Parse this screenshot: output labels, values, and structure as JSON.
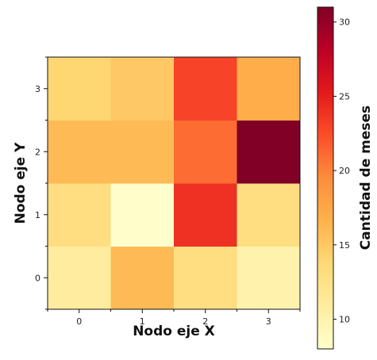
{
  "chart_data": {
    "type": "heatmap",
    "xlabel": "Nodo eje X",
    "ylabel": "Nodo eje Y",
    "x_categories": [
      "0",
      "1",
      "2",
      "3"
    ],
    "y_categories": [
      "0",
      "1",
      "2",
      "3"
    ],
    "grid": false,
    "cells": [
      [
        11,
        16,
        13,
        10
      ],
      [
        13,
        8,
        24,
        13
      ],
      [
        16,
        16,
        21,
        31
      ],
      [
        14,
        15,
        23,
        17
      ]
    ],
    "colorbar": {
      "label": "Cantidad de meses",
      "range": [
        8,
        31
      ],
      "ticks": [
        10,
        15,
        20,
        25,
        30
      ],
      "placement": "right",
      "colormap": "YlOrRd",
      "colors": [
        "#ffffcc",
        "#ffeda0",
        "#fed976",
        "#feb24c",
        "#fd8d3c",
        "#fc4e2a",
        "#e31a1c",
        "#bd0026",
        "#800026"
      ]
    }
  }
}
